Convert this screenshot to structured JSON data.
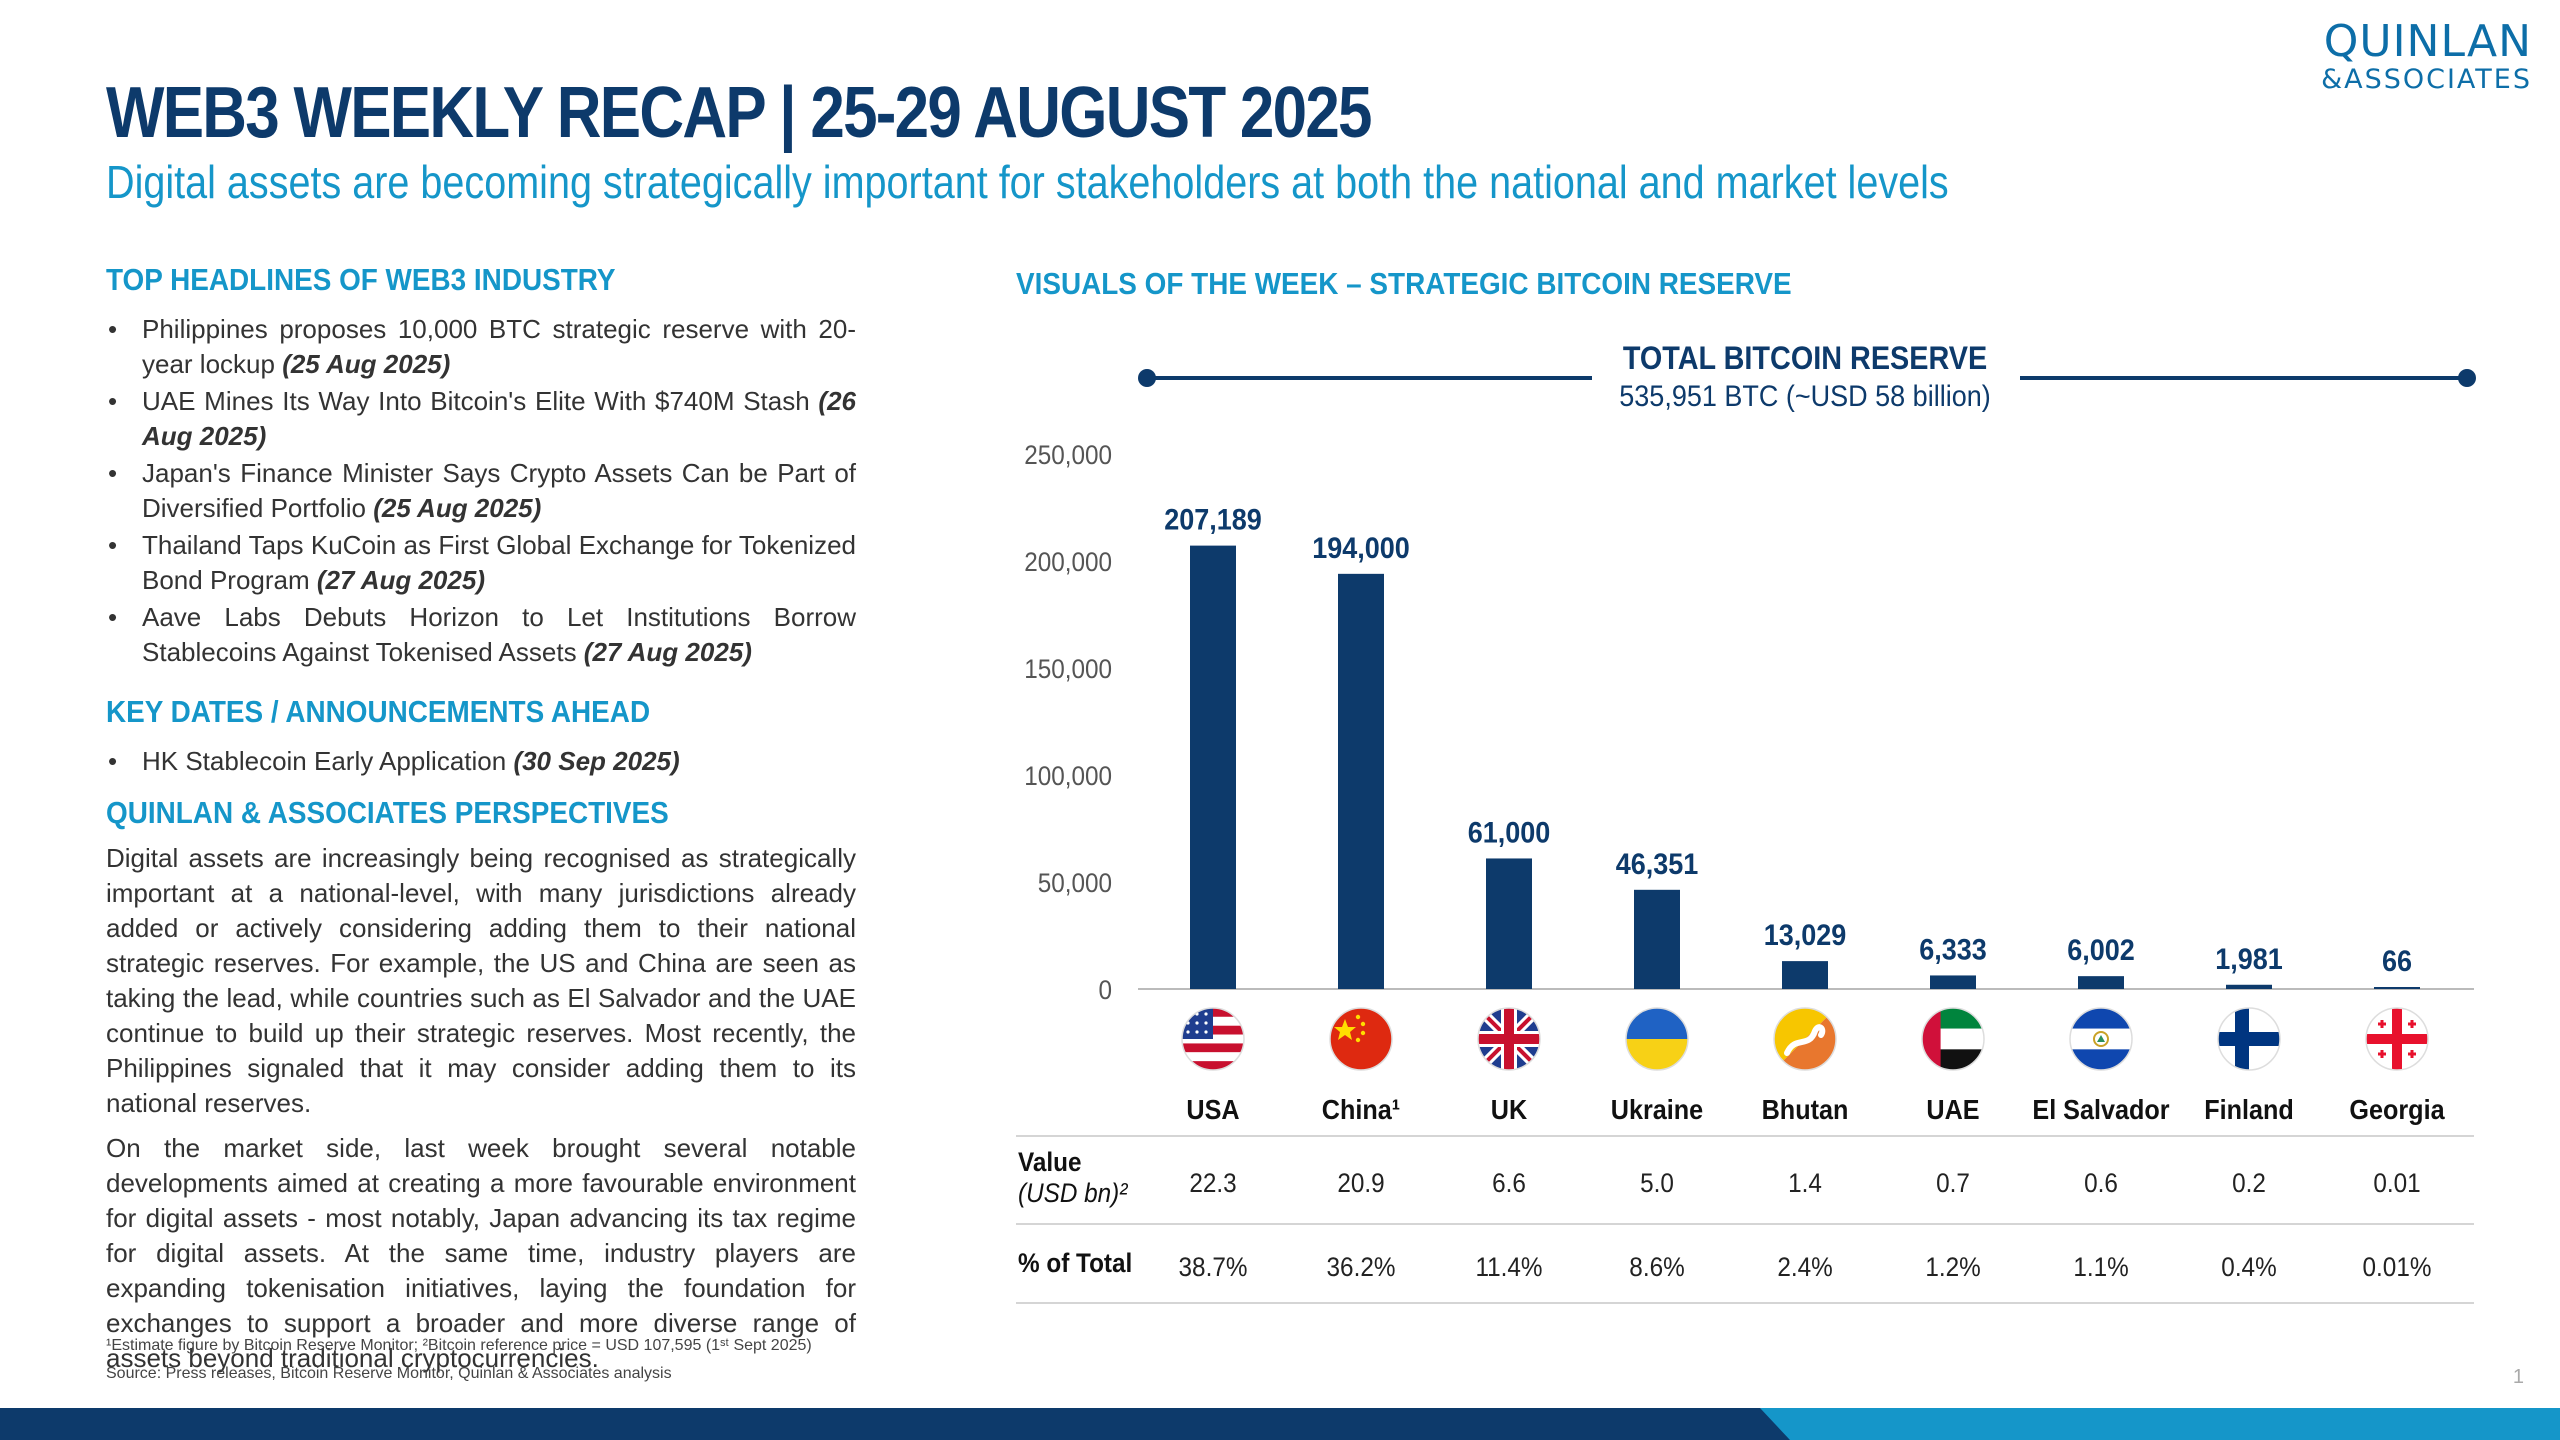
{
  "logo": {
    "line1": "QUINLAN",
    "line2": "&ASSOCIATES"
  },
  "header": {
    "title": "WEB3 WEEKLY RECAP | 25-29 AUGUST 2025",
    "subtitle": "Digital assets are becoming strategically important for stakeholders at both the national and market levels"
  },
  "headlines": {
    "title": "TOP HEADLINES OF WEB3 INDUSTRY",
    "items": [
      {
        "text": "Philippines proposes 10,000 BTC strategic reserve with 20-year lockup ",
        "date": "(25 Aug 2025)"
      },
      {
        "text": "UAE Mines Its Way Into Bitcoin's Elite With $740M Stash ",
        "date": "(26 Aug 2025)"
      },
      {
        "text": "Japan's Finance Minister Says Crypto Assets Can be Part of Diversified Portfolio ",
        "date": "(25 Aug 2025)"
      },
      {
        "text": "Thailand Taps KuCoin as First Global Exchange for Tokenized Bond Program ",
        "date": "(27 Aug 2025)"
      },
      {
        "text": "Aave Labs Debuts Horizon to Let Institutions Borrow Stablecoins Against Tokenised Assets ",
        "date": "(27 Aug 2025)"
      }
    ]
  },
  "key_dates": {
    "title": "KEY DATES / ANNOUNCEMENTS AHEAD",
    "items": [
      {
        "text": "HK Stablecoin Early Application ",
        "date": "(30 Sep 2025)"
      }
    ]
  },
  "perspectives": {
    "title": "QUINLAN & ASSOCIATES PERSPECTIVES",
    "para1": "Digital assets are increasingly being recognised as strategically important at a national-level, with many jurisdictions already added or actively considering adding them to their national strategic reserves. For example, the US and China are seen as taking the lead, while countries such as El Salvador and the UAE continue to build up their strategic reserves. Most recently, the Philippines signaled that it may consider adding them to its national reserves.",
    "para2": "On the market side, last week brought several notable developments aimed at creating a more favourable environment for digital assets - most notably, Japan advancing its tax regime for digital assets. At the same time, industry players are expanding tokenisation initiatives, laying the foundation for exchanges to support a broader and more diverse range of assets beyond traditional cryptocurrencies."
  },
  "footnotes": {
    "line1": "¹Estimate figure by Bitcoin Reserve Monitor; ²Bitcoin reference price = USD 107,595 (1ˢᵗ Sept 2025)",
    "line2": "Source: Press releases, Bitcoin Reserve Monitor, Quinlan & Associates analysis"
  },
  "page_number": "1",
  "visuals": {
    "title": "VISUALS OF THE WEEK – STRATEGIC BITCOIN RESERVE",
    "total_label": "TOTAL BITCOIN RESERVE",
    "total_value": "535,951 BTC (~USD 58 billion)"
  },
  "table": {
    "value_label": "Value",
    "value_unit": "(USD bn)²",
    "pct_label": "% of Total",
    "values": [
      "22.3",
      "20.9",
      "6.6",
      "5.0",
      "1.4",
      "0.7",
      "0.6",
      "0.2",
      "0.01"
    ],
    "pcts": [
      "38.7%",
      "36.2%",
      "11.4%",
      "8.6%",
      "2.4%",
      "1.2%",
      "1.1%",
      "0.4%",
      "0.01%"
    ]
  },
  "colors": {
    "navy": "#0d3a6b",
    "accent": "#1596c9"
  },
  "chart_data": {
    "type": "bar",
    "categories": [
      "USA",
      "China¹",
      "UK",
      "Ukraine",
      "Bhutan",
      "UAE",
      "El Salvador",
      "Finland",
      "Georgia"
    ],
    "values": [
      207189,
      194000,
      61000,
      46351,
      13029,
      6333,
      6002,
      1981,
      66
    ],
    "data_labels": [
      "207,189",
      "194,000",
      "61,000",
      "46,351",
      "13,029",
      "6,333",
      "6,002",
      "1,981",
      "66"
    ],
    "yticks": [
      "0",
      "50,000",
      "100,000",
      "150,000",
      "200,000",
      "250,000"
    ],
    "ylim": [
      0,
      250000
    ],
    "flags": [
      "usa-flag-icon",
      "china-flag-icon",
      "uk-flag-icon",
      "ukraine-flag-icon",
      "bhutan-flag-icon",
      "uae-flag-icon",
      "el-salvador-flag-icon",
      "finland-flag-icon",
      "georgia-flag-icon"
    ],
    "bar_color": "#0d3a6b",
    "grid": false
  }
}
